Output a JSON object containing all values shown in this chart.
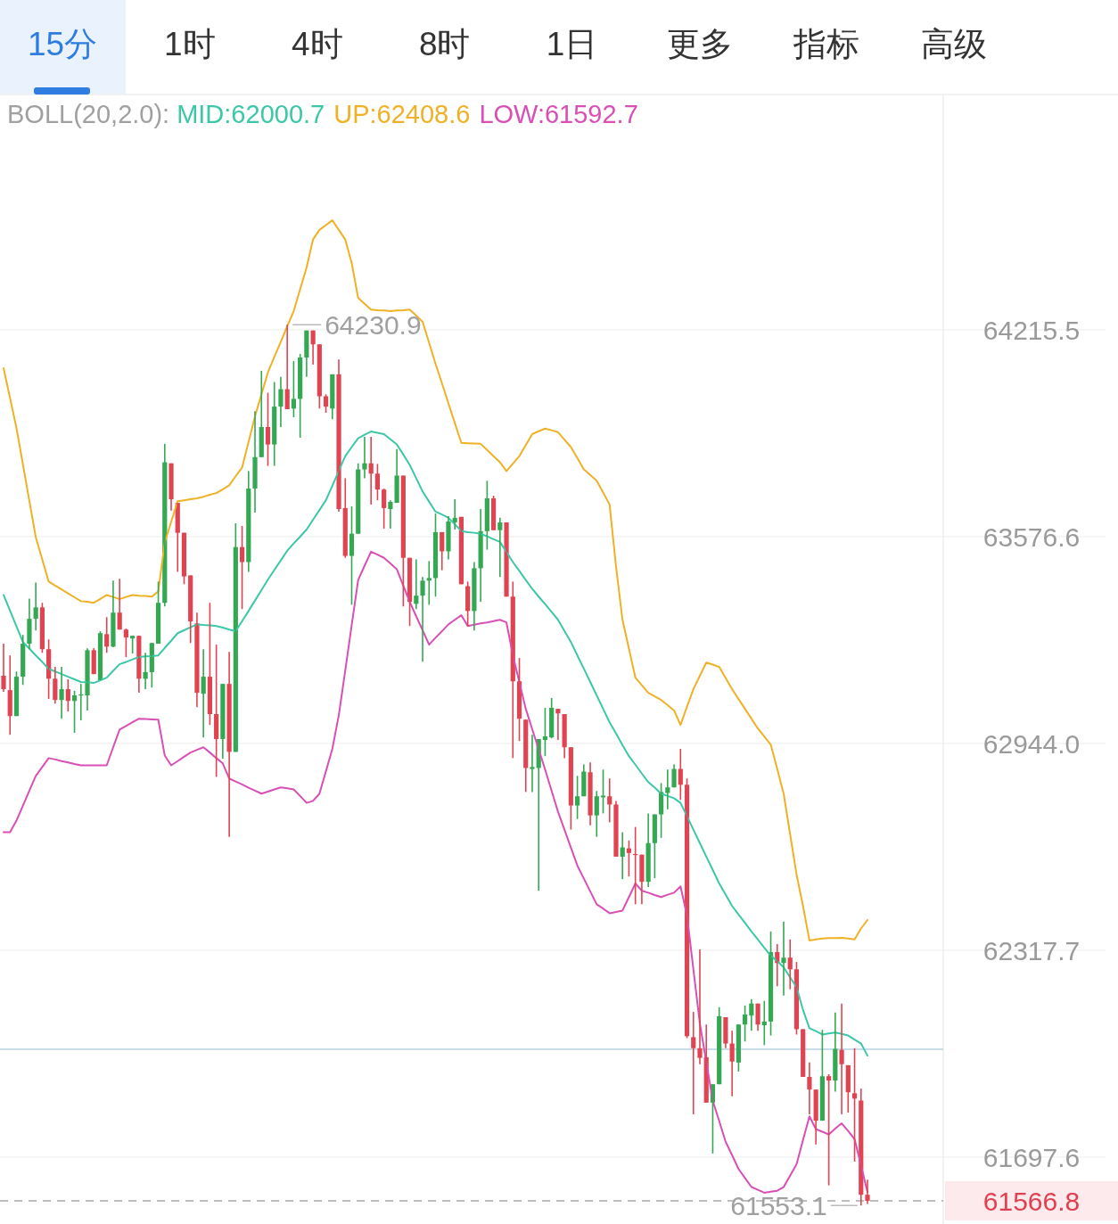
{
  "chart_data": {
    "type": "candlestick",
    "title": "BOLL(20,2.0):",
    "log": true,
    "grid": "y",
    "legend": "top",
    "categories": [
      null,
      null,
      null,
      null,
      null,
      null,
      null,
      null,
      null,
      null,
      null,
      null,
      null,
      null,
      null,
      null,
      null,
      null,
      null,
      null,
      null,
      null,
      null,
      null,
      null,
      null,
      null,
      null,
      null,
      null,
      null,
      null,
      null,
      null,
      null,
      null,
      null,
      null,
      null,
      null,
      null,
      null,
      null,
      null,
      null,
      null,
      null,
      null,
      null,
      null,
      null,
      null,
      null,
      null,
      null,
      null,
      null,
      null,
      null,
      null,
      null,
      null,
      null,
      null,
      null,
      null,
      null,
      null,
      null,
      null,
      null,
      null,
      null,
      null,
      null,
      null,
      null,
      null,
      null,
      null,
      null,
      null,
      null,
      null,
      null,
      null,
      null,
      null,
      null,
      null,
      null,
      null,
      null,
      null,
      null,
      null,
      null,
      null,
      null,
      null,
      null,
      null,
      null,
      null,
      null,
      null,
      null,
      null,
      null,
      null,
      null,
      null,
      null,
      null,
      null,
      null,
      null,
      null,
      null,
      null,
      null,
      null,
      null,
      null,
      null,
      null,
      null,
      null,
      null,
      null,
      null,
      null,
      null,
      null,
      null
    ],
    "ohlc": [
      [
        63150,
        63248,
        63101,
        63109
      ],
      [
        63106,
        63212,
        62970,
        63027
      ],
      [
        63027,
        63163,
        63027,
        63147
      ],
      [
        63147,
        63275,
        63122,
        63248
      ],
      [
        63248,
        63386,
        63231,
        63324
      ],
      [
        63324,
        63435,
        63288,
        63359
      ],
      [
        63359,
        63373,
        63220,
        63231
      ],
      [
        63231,
        63261,
        63079,
        63141
      ],
      [
        63141,
        63177,
        63065,
        63076
      ],
      [
        63076,
        63177,
        63019,
        63109
      ],
      [
        63109,
        63139,
        63041,
        63073
      ],
      [
        63073,
        63104,
        62976,
        63090
      ],
      [
        63090,
        63125,
        63014,
        63093
      ],
      [
        63090,
        63234,
        63044,
        63228
      ],
      [
        63228,
        63234,
        63155,
        63155
      ],
      [
        63136,
        63286,
        63136,
        63280
      ],
      [
        63277,
        63329,
        63220,
        63239
      ],
      [
        63239,
        63441,
        63237,
        63343
      ],
      [
        63343,
        63447,
        63291,
        63291
      ],
      [
        63291,
        63294,
        63207,
        63267
      ],
      [
        63264,
        63272,
        63218,
        63272
      ],
      [
        63272,
        63272,
        63098,
        63141
      ],
      [
        63141,
        63220,
        63109,
        63161
      ],
      [
        63161,
        63250,
        63114,
        63250
      ],
      [
        63248,
        63438,
        63248,
        63373
      ],
      [
        63373,
        63862,
        63362,
        63805
      ],
      [
        63802,
        63802,
        63656,
        63691
      ],
      [
        63680,
        63680,
        63468,
        63588
      ],
      [
        63588,
        63588,
        63430,
        63454
      ],
      [
        63457,
        63457,
        63250,
        63316
      ],
      [
        63310,
        63343,
        63054,
        63098
      ],
      [
        63095,
        63231,
        62962,
        63147
      ],
      [
        63147,
        63373,
        63000,
        63033
      ],
      [
        63033,
        63245,
        62842,
        62957
      ],
      [
        62957,
        63125,
        62897,
        63125
      ],
      [
        63125,
        63223,
        62660,
        62918
      ],
      [
        62918,
        63617,
        62918,
        63544
      ],
      [
        63544,
        63609,
        63354,
        63498
      ],
      [
        63498,
        63778,
        63468,
        63724
      ],
      [
        63724,
        63963,
        63650,
        63821
      ],
      [
        63821,
        64088,
        63821,
        63914
      ],
      [
        63914,
        64020,
        63794,
        63860
      ],
      [
        63860,
        64053,
        63794,
        63977
      ],
      [
        63977,
        64069,
        63914,
        64031
      ],
      [
        64031,
        64230.9,
        63969,
        63969
      ],
      [
        63971,
        64118,
        63944,
        64001
      ],
      [
        64001,
        64140,
        63881,
        64129
      ],
      [
        64129,
        64213,
        64069,
        64213
      ],
      [
        64213,
        64213,
        64107,
        64170
      ],
      [
        64170,
        64170,
        63971,
        64009
      ],
      [
        64009,
        64015,
        63958,
        63977
      ],
      [
        63971,
        64077,
        63938,
        64077
      ],
      [
        64077,
        64123,
        63653,
        63661
      ],
      [
        63664,
        63756,
        63511,
        63517
      ],
      [
        63517,
        63669,
        63367,
        63585
      ],
      [
        63585,
        63802,
        63585,
        63783
      ],
      [
        63783,
        63884,
        63756,
        63802
      ],
      [
        63802,
        63884,
        63675,
        63770
      ],
      [
        63770,
        63800,
        63688,
        63721
      ],
      [
        63721,
        63724,
        63601,
        63664
      ],
      [
        63661,
        63688,
        63601,
        63683
      ],
      [
        63680,
        63846,
        63680,
        63764
      ],
      [
        63764,
        63764,
        63362,
        63511
      ],
      [
        63511,
        63511,
        63302,
        63376
      ],
      [
        63370,
        63506,
        63354,
        63395
      ],
      [
        63395,
        63452,
        63193,
        63441
      ],
      [
        63441,
        63501,
        63367,
        63449
      ],
      [
        63449,
        63647,
        63392,
        63590
      ],
      [
        63590,
        63590,
        63473,
        63531
      ],
      [
        63531,
        63639,
        63506,
        63623
      ],
      [
        63620,
        63691,
        63598,
        63634
      ],
      [
        63637,
        63637,
        63430,
        63430
      ],
      [
        63424,
        63438,
        63302,
        63348
      ],
      [
        63348,
        63498,
        63288,
        63479
      ],
      [
        63479,
        63661,
        63376,
        63593
      ],
      [
        63593,
        63748,
        63536,
        63694
      ],
      [
        63694,
        63702,
        63596,
        63596
      ],
      [
        63596,
        63634,
        63452,
        63620
      ],
      [
        63620,
        63620,
        63392,
        63392
      ],
      [
        63392,
        63438,
        62899,
        63133
      ],
      [
        63133,
        63204,
        62951,
        63019
      ],
      [
        63016,
        63016,
        62796,
        62869
      ],
      [
        62866,
        62970,
        62796,
        62872
      ],
      [
        62869,
        62957,
        62497,
        62957
      ],
      [
        62954,
        63052,
        62905,
        62965
      ],
      [
        62962,
        63082,
        62959,
        63052
      ],
      [
        63049,
        63049,
        62954,
        63035
      ],
      [
        63033,
        63033,
        62899,
        62932
      ],
      [
        62932,
        62932,
        62682,
        62755
      ],
      [
        62755,
        62845,
        62714,
        62783
      ],
      [
        62783,
        62880,
        62783,
        62858
      ],
      [
        62856,
        62886,
        62695,
        62725
      ],
      [
        62725,
        62799,
        62660,
        62783
      ],
      [
        62780,
        62864,
        62731,
        62785
      ],
      [
        62783,
        62837,
        62704,
        62758
      ],
      [
        62758,
        62769,
        62600,
        62600
      ],
      [
        62600,
        62674,
        62532,
        62628
      ],
      [
        62625,
        62649,
        62540,
        62611
      ],
      [
        62608,
        62690,
        62456,
        62606
      ],
      [
        62606,
        62606,
        62456,
        62524
      ],
      [
        62524,
        62731,
        62508,
        62641
      ],
      [
        62641,
        62728,
        62535,
        62728
      ],
      [
        62728,
        62823,
        62657,
        62796
      ],
      [
        62793,
        62864,
        62744,
        62810
      ],
      [
        62810,
        62880,
        62810,
        62866
      ],
      [
        62866,
        62927,
        62772,
        62818
      ],
      [
        62818,
        62837,
        62053,
        62059
      ],
      [
        62056,
        62132,
        61825,
        62023
      ],
      [
        62023,
        62320,
        61975,
        61994
      ],
      [
        61996,
        62094,
        61860,
        61860
      ],
      [
        61860,
        61915,
        61708,
        61915
      ],
      [
        61915,
        62146,
        61915,
        62119
      ],
      [
        62116,
        62116,
        62023,
        62037
      ],
      [
        62037,
        62075,
        61879,
        61983
      ],
      [
        61980,
        62094,
        61953,
        62094
      ],
      [
        62094,
        62151,
        62043,
        62124
      ],
      [
        62121,
        62170,
        62075,
        62157
      ],
      [
        62157,
        62157,
        62075,
        62094
      ],
      [
        62092,
        62165,
        62032,
        62103
      ],
      [
        62103,
        62374,
        62061,
        62312
      ],
      [
        62312,
        62336,
        62209,
        62279
      ],
      [
        62279,
        62404,
        62181,
        62295
      ],
      [
        62295,
        62350,
        62200,
        62260
      ],
      [
        62260,
        62282,
        62064,
        62080
      ],
      [
        62080,
        62080,
        61937,
        61937
      ],
      [
        61937,
        61980,
        61825,
        61899
      ],
      [
        61899,
        61899,
        61735,
        61806
      ],
      [
        61806,
        62078,
        61806,
        61939
      ],
      [
        61939,
        61945,
        61613,
        61926
      ],
      [
        61926,
        62130,
        61893,
        62021
      ],
      [
        62018,
        62157,
        61825,
        61975
      ],
      [
        61972,
        61972,
        61830,
        61891
      ],
      [
        61888,
        62023,
        61684,
        61872
      ],
      [
        61866,
        61902,
        61553.1,
        61585
      ],
      [
        61585,
        61630,
        61558,
        61566.8
      ]
    ],
    "series": [
      {
        "name": "MID:62000.7",
        "type": "line",
        "color": "#3cc8a8",
        "values": [
          63397,
          63349,
          63301,
          63253,
          63233,
          63212,
          63192,
          63171,
          63163,
          63155,
          63147,
          63139,
          63131,
          63130,
          63128,
          63136,
          63144,
          63165,
          63185,
          63192,
          63200,
          63207,
          63209,
          63210,
          63212,
          63235,
          63257,
          63280,
          63289,
          63298,
          63307,
          63305,
          63304,
          63302,
          63297,
          63291,
          63286,
          63317,
          63348,
          63380,
          63412,
          63444,
          63474,
          63503,
          63533,
          63555,
          63576,
          63598,
          63628,
          63658,
          63688,
          63733,
          63779,
          63824,
          63852,
          63879,
          63890,
          63900,
          63896,
          63892,
          63876,
          63860,
          63829,
          63797,
          63756,
          63715,
          63684,
          63653,
          63644,
          63634,
          63614,
          63593,
          63590,
          63588,
          63585,
          63577,
          63568,
          63560,
          63529,
          63498,
          63471,
          63443,
          63416,
          63392,
          63369,
          63345,
          63321,
          63287,
          63253,
          63212,
          63172,
          63131,
          63090,
          63049,
          63008,
          62974,
          62939,
          62905,
          62879,
          62852,
          62826,
          62809,
          62791,
          62784,
          62777,
          62763,
          62723,
          62682,
          62641,
          62600,
          62560,
          62519,
          62485,
          62451,
          62425,
          62400,
          62374,
          62350,
          62325,
          62301,
          62284,
          62266,
          62236,
          62206,
          62138,
          62083,
          62074,
          62064,
          62067,
          62070,
          62066,
          62061,
          62049,
          62037,
          62000.7
        ]
      },
      {
        "name": "UP:62408.6",
        "type": "line",
        "color": "#efb125",
        "values": [
          64096,
          64004,
          63911,
          63799,
          63686,
          63574,
          63506,
          63438,
          63426,
          63414,
          63402,
          63390,
          63378,
          63376,
          63373,
          63385,
          63397,
          63391,
          63384,
          63391,
          63397,
          63395,
          63394,
          63392,
          63408,
          63558,
          63622,
          63685,
          63688,
          63691,
          63694,
          63699,
          63705,
          63710,
          63722,
          63734,
          63762,
          63789,
          63868,
          63947,
          64015,
          64083,
          64131,
          64178,
          64226,
          64273,
          64341,
          64409,
          64496,
          64526,
          64541,
          64556,
          64526,
          64496,
          64423,
          64314,
          64296,
          64278,
          64276,
          64275,
          64273,
          64275,
          64276,
          64278,
          64259,
          64240,
          64175,
          64110,
          64049,
          63987,
          63926,
          63865,
          63864,
          63863,
          63862,
          63843,
          63824,
          63805,
          63778,
          63801,
          63824,
          63858,
          63892,
          63901,
          63909,
          63904,
          63898,
          63875,
          63852,
          63818,
          63783,
          63766,
          63748,
          63712,
          63675,
          63484,
          63321,
          63233,
          63144,
          63121,
          63098,
          63087,
          63076,
          63060,
          63044,
          63000,
          63055,
          63109,
          63150,
          63190,
          63184,
          63177,
          63143,
          63109,
          63079,
          63049,
          63019,
          62989,
          62965,
          62940,
          62866,
          62791,
          62668,
          62546,
          62451,
          62347,
          62350,
          62353,
          62354,
          62354,
          62355,
          62353,
          62350,
          62383,
          62408.6
        ]
      },
      {
        "name": "LOW:61592.7",
        "type": "line",
        "color": "#d94fb5",
        "values": [
          62674,
          62674,
          62709,
          62754,
          62800,
          62845,
          62872,
          62899,
          62895,
          62890,
          62886,
          62881,
          62877,
          62877,
          62877,
          62877,
          62877,
          62932,
          62986,
          62997,
          63008,
          63019,
          63018,
          63017,
          63016,
          62907,
          62877,
          62890,
          62903,
          62916,
          62924,
          62932,
          62916,
          62899,
          62883,
          62837,
          62828,
          62819,
          62809,
          62800,
          62791,
          62797,
          62804,
          62810,
          62807,
          62804,
          62784,
          62763,
          62769,
          62791,
          62859,
          62927,
          63030,
          63166,
          63305,
          63443,
          63487,
          63530,
          63521,
          63511,
          63494,
          63476,
          63426,
          63376,
          63332,
          63289,
          63245,
          63266,
          63286,
          63307,
          63321,
          63335,
          63302,
          63306,
          63310,
          63313,
          63317,
          63321,
          63313,
          63212,
          63131,
          63049,
          62987,
          62926,
          62864,
          62800,
          62736,
          62682,
          62627,
          62573,
          62534,
          62495,
          62456,
          62443,
          62429,
          62433,
          62437,
          62478,
          62519,
          62497,
          62491,
          62484,
          62478,
          62485,
          62491,
          62510,
          62423,
          62260,
          62097,
          61982,
          61866,
          61805,
          61743,
          61703,
          61662,
          61635,
          61608,
          61600,
          61591,
          61594,
          61597,
          61608,
          61642,
          61676,
          61748,
          61819,
          61781,
          61773,
          61765,
          61782,
          61798,
          61775,
          61751,
          61672,
          61592.7
        ]
      }
    ],
    "ylim": [
      61498,
      64947
    ],
    "yticks": [
      64215.5,
      63576.6,
      {
        "value": 62944,
        "label": "62944.0"
      },
      62317.7,
      61697.6
    ],
    "ref_lines": [
      {
        "axis": "y",
        "value": 62020,
        "color": "#b5d3e3"
      },
      {
        "axis": "y",
        "value": 61566.8,
        "label": "61566.8",
        "color": "#a8a8a8",
        "line_style": "dashed"
      }
    ],
    "annotations": [
      "15分",
      "1时",
      "4时",
      "8时",
      "1日",
      "更多",
      "指标",
      "高级",
      "64230.9",
      "61553.1"
    ]
  }
}
